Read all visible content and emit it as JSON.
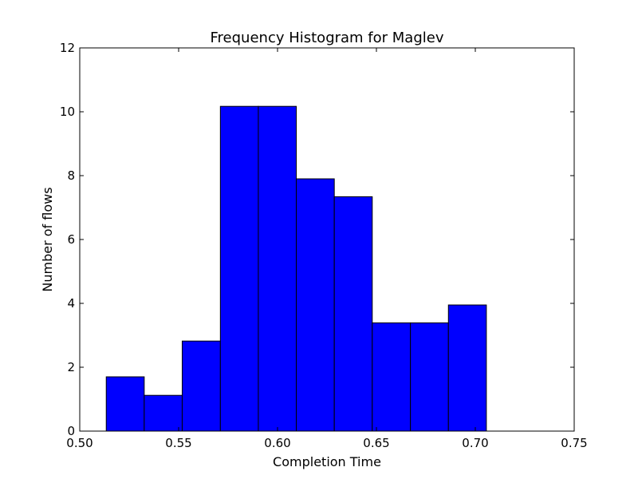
{
  "chart_data": {
    "type": "bar",
    "title": "Frequency Histogram for Maglev",
    "xlabel": "Completion Time",
    "ylabel": "Number of flows",
    "xlim": [
      0.5,
      0.75
    ],
    "ylim": [
      0,
      12
    ],
    "xticks": [
      "0.50",
      "0.55",
      "0.60",
      "0.65",
      "0.70",
      "0.75"
    ],
    "yticks": [
      "0",
      "2",
      "4",
      "6",
      "8",
      "10",
      "12"
    ],
    "bin_edges": [
      0.5134,
      0.5326,
      0.5518,
      0.5711,
      0.5903,
      0.6095,
      0.6287,
      0.6479,
      0.6672,
      0.6864,
      0.7056
    ],
    "values": [
      1.7,
      1.12,
      2.82,
      10.17,
      10.17,
      7.9,
      7.34,
      3.39,
      3.39,
      3.95
    ],
    "grid": false,
    "bar_color": "#0000ff",
    "edge_color": "#000000"
  }
}
